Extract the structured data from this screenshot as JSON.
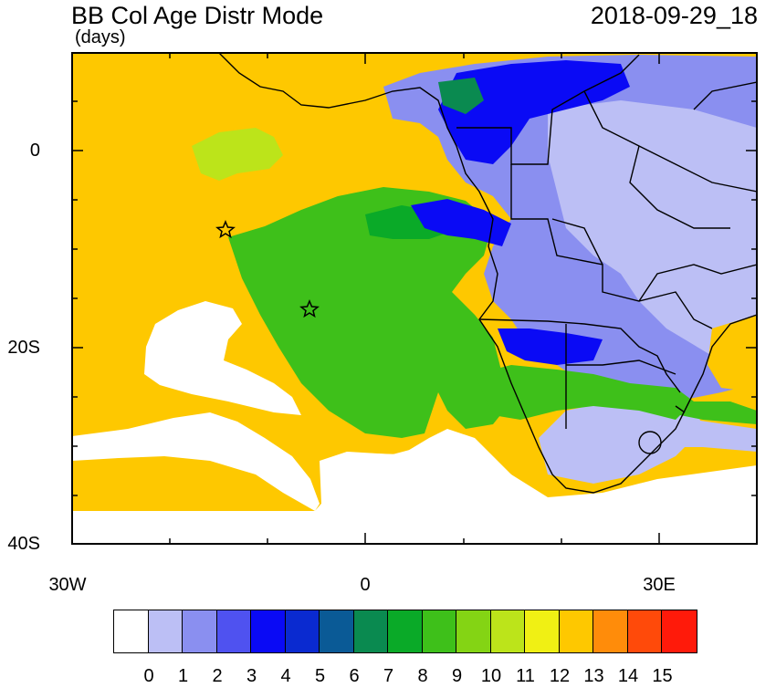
{
  "title": "BB Col Age Distr Mode",
  "units": "(days)",
  "date": "2018-09-29_18",
  "lat_labels": [
    "0",
    "20S",
    "40S"
  ],
  "lon_labels": [
    "30W",
    "0",
    "30E"
  ],
  "colorbar": {
    "labels": [
      "0",
      "1",
      "2",
      "3",
      "4",
      "5",
      "6",
      "7",
      "8",
      "9",
      "10",
      "11",
      "12",
      "13",
      "14",
      "15"
    ],
    "colors": [
      "#ffffff",
      "#bcbff5",
      "#8a8ff0",
      "#4f52f0",
      "#0a0af5",
      "#0a2ad0",
      "#0a5a96",
      "#0a8a50",
      "#0aaa28",
      "#3ec01a",
      "#84d414",
      "#bce41a",
      "#f0f014",
      "#fec800",
      "#ff8c0a",
      "#ff4a0a",
      "#ff1a0a"
    ]
  },
  "markers": [
    "star-marker-1",
    "star-marker-2"
  ]
}
